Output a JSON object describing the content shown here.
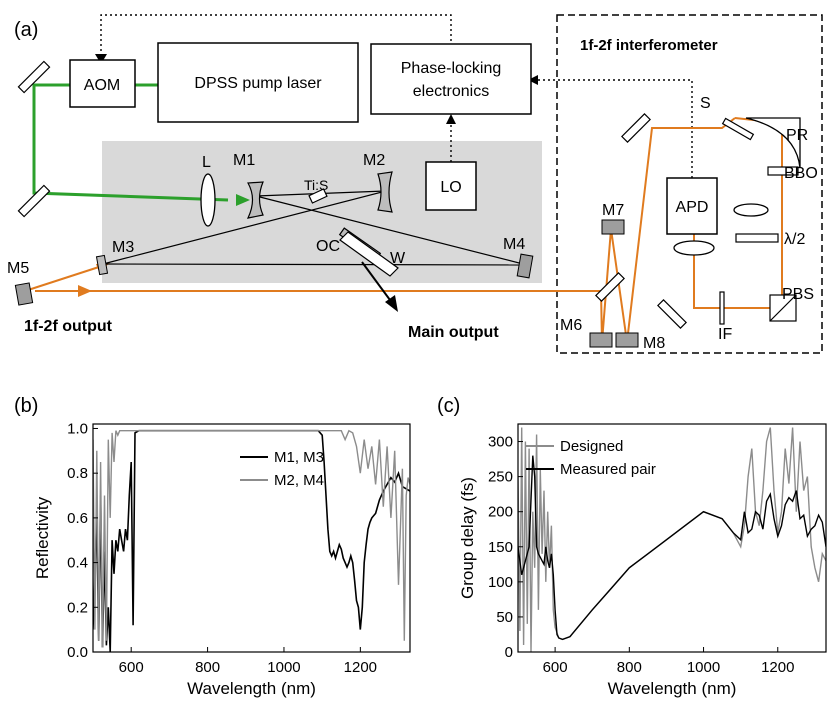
{
  "colors": {
    "green": "#2ca02c",
    "orange": "#e07b1f",
    "panel_gray": "#d9d9d9",
    "black": "#000000",
    "gray": "#8c8c8c"
  },
  "panel_a": {
    "label": "(a)",
    "aom": "AOM",
    "pump": "DPSS pump laser",
    "phase_lock_line1": "Phase-locking",
    "phase_lock_line2": "electronics",
    "interferometer_title": "1f-2f interferometer",
    "lo": "LO",
    "apd": "APD",
    "lens_L": "L",
    "tis": "Ti:S",
    "m1": "M1",
    "m2": "M2",
    "m3": "M3",
    "m4": "M4",
    "m5": "M5",
    "m6": "M6",
    "m7": "M7",
    "m8": "M8",
    "oc": "OC",
    "w": "W",
    "s": "S",
    "pr": "PR",
    "bbo": "BBO",
    "half_wave": "λ/2",
    "pbs": "PBS",
    "if": "IF",
    "output_1f2f": "1f-2f output",
    "main_output": "Main output"
  },
  "panel_b": {
    "label": "(b)"
  },
  "panel_c": {
    "label": "(c)"
  },
  "chart_data": [
    {
      "type": "line",
      "xlabel": "Wavelength (nm)",
      "ylabel": "Reflectivity",
      "xlim": [
        500,
        1330
      ],
      "ylim": [
        0.0,
        1.02
      ],
      "xticks": [
        600,
        800,
        1000,
        1200
      ],
      "yticks": [
        0.0,
        0.2,
        0.4,
        0.6,
        0.8,
        1.0
      ],
      "xtick_labels": [
        "600",
        "800",
        "1000",
        "1200"
      ],
      "ytick_labels": [
        "0.0",
        "0.2",
        "0.4",
        "0.6",
        "0.8",
        "1.0"
      ],
      "legend_position": "top-center",
      "series": [
        {
          "name": "M1, M3",
          "color": "#000000",
          "x": [
            500,
            510,
            515,
            520,
            525,
            530,
            535,
            540,
            545,
            550,
            555,
            560,
            565,
            570,
            575,
            580,
            585,
            590,
            595,
            600,
            605,
            610,
            620,
            640,
            700,
            800,
            900,
            1000,
            1050,
            1090,
            1100,
            1105,
            1110,
            1115,
            1120,
            1125,
            1130,
            1135,
            1140,
            1145,
            1150,
            1155,
            1160,
            1165,
            1170,
            1175,
            1180,
            1185,
            1190,
            1195,
            1200,
            1205,
            1210,
            1215,
            1220,
            1225,
            1230,
            1240,
            1250,
            1260,
            1270,
            1280,
            1290,
            1300,
            1310,
            1320,
            1330
          ],
          "y": [
            0.1,
            0.6,
            0.05,
            0.7,
            0.02,
            0.45,
            0.03,
            0.2,
            0.0,
            0.5,
            0.35,
            0.5,
            0.45,
            0.55,
            0.5,
            0.45,
            0.55,
            0.5,
            0.7,
            0.85,
            0.12,
            0.98,
            0.99,
            0.99,
            0.99,
            0.99,
            0.99,
            0.99,
            0.99,
            0.99,
            0.97,
            0.85,
            0.7,
            0.55,
            0.45,
            0.43,
            0.45,
            0.42,
            0.45,
            0.48,
            0.46,
            0.42,
            0.4,
            0.38,
            0.4,
            0.43,
            0.4,
            0.32,
            0.23,
            0.2,
            0.1,
            0.2,
            0.4,
            0.48,
            0.55,
            0.58,
            0.6,
            0.62,
            0.68,
            0.72,
            0.75,
            0.78,
            0.76,
            0.8,
            0.74,
            0.73,
            0.72
          ]
        },
        {
          "name": "M2, M4",
          "color": "#8c8c8c",
          "x": [
            500,
            505,
            510,
            515,
            520,
            525,
            530,
            535,
            540,
            545,
            550,
            555,
            560,
            565,
            570,
            575,
            580,
            590,
            600,
            700,
            800,
            900,
            1000,
            1100,
            1150,
            1160,
            1165,
            1170,
            1180,
            1190,
            1200,
            1210,
            1220,
            1230,
            1240,
            1250,
            1260,
            1270,
            1280,
            1290,
            1300,
            1310,
            1315,
            1320,
            1325,
            1330
          ],
          "y": [
            0.95,
            0.1,
            0.9,
            0.05,
            0.85,
            0.02,
            0.7,
            0.05,
            0.95,
            0.6,
            0.98,
            0.85,
            0.99,
            0.97,
            0.99,
            0.99,
            0.99,
            0.99,
            0.99,
            0.99,
            0.99,
            0.99,
            0.99,
            0.99,
            0.99,
            0.95,
            0.97,
            0.99,
            0.98,
            0.92,
            0.8,
            0.95,
            0.82,
            0.92,
            0.75,
            0.95,
            0.65,
            0.92,
            0.6,
            0.9,
            0.3,
            0.82,
            0.05,
            0.7,
            0.78,
            0.75
          ]
        }
      ]
    },
    {
      "type": "line",
      "xlabel": "Wavelength (nm)",
      "ylabel": "Group delay (fs)",
      "xlim": [
        500,
        1330
      ],
      "ylim": [
        0,
        325
      ],
      "xticks": [
        600,
        800,
        1000,
        1200
      ],
      "yticks": [
        0,
        50,
        100,
        150,
        200,
        250,
        300
      ],
      "xtick_labels": [
        "600",
        "800",
        "1000",
        "1200"
      ],
      "ytick_labels": [
        "0",
        "50",
        "100",
        "150",
        "200",
        "250",
        "300"
      ],
      "legend_position": "top-left",
      "series": [
        {
          "name": "Designed",
          "color": "#8c8c8c",
          "x": [
            500,
            505,
            510,
            515,
            520,
            525,
            530,
            535,
            540,
            545,
            550,
            555,
            560,
            565,
            570,
            575,
            580,
            585,
            590,
            595,
            600,
            610,
            620,
            640,
            700,
            750,
            800,
            850,
            900,
            950,
            1000,
            1050,
            1080,
            1100,
            1110,
            1120,
            1130,
            1140,
            1150,
            1160,
            1170,
            1180,
            1190,
            1200,
            1210,
            1220,
            1230,
            1240,
            1250,
            1260,
            1270,
            1280,
            1290,
            1300,
            1310,
            1320,
            1330
          ],
          "y": [
            250,
            30,
            320,
            10,
            300,
            40,
            290,
            0,
            200,
            120,
            310,
            60,
            260,
            140,
            230,
            100,
            200,
            120,
            180,
            60,
            35,
            20,
            18,
            22,
            60,
            90,
            120,
            140,
            160,
            180,
            200,
            190,
            170,
            150,
            180,
            250,
            290,
            200,
            180,
            230,
            300,
            320,
            230,
            170,
            200,
            290,
            240,
            320,
            200,
            300,
            230,
            250,
            150,
            120,
            100,
            140,
            130
          ]
        },
        {
          "name": "Measured pair",
          "color": "#000000",
          "x": [
            500,
            510,
            520,
            530,
            540,
            545,
            550,
            555,
            560,
            565,
            570,
            575,
            580,
            585,
            590,
            595,
            600,
            605,
            610,
            620,
            640,
            700,
            750,
            800,
            850,
            900,
            950,
            1000,
            1050,
            1080,
            1100,
            1110,
            1120,
            1130,
            1140,
            1150,
            1160,
            1170,
            1180,
            1190,
            1200,
            1210,
            1220,
            1230,
            1240,
            1250,
            1260,
            1270,
            1280,
            1290,
            1300,
            1310,
            1320,
            1330
          ],
          "y": [
            150,
            110,
            130,
            150,
            280,
            250,
            150,
            140,
            135,
            130,
            125,
            150,
            130,
            120,
            140,
            110,
            60,
            25,
            20,
            18,
            22,
            60,
            90,
            120,
            140,
            160,
            180,
            200,
            190,
            170,
            160,
            200,
            170,
            175,
            200,
            195,
            175,
            215,
            225,
            190,
            165,
            180,
            210,
            220,
            215,
            230,
            190,
            195,
            165,
            175,
            180,
            195,
            185,
            150
          ]
        }
      ]
    }
  ]
}
